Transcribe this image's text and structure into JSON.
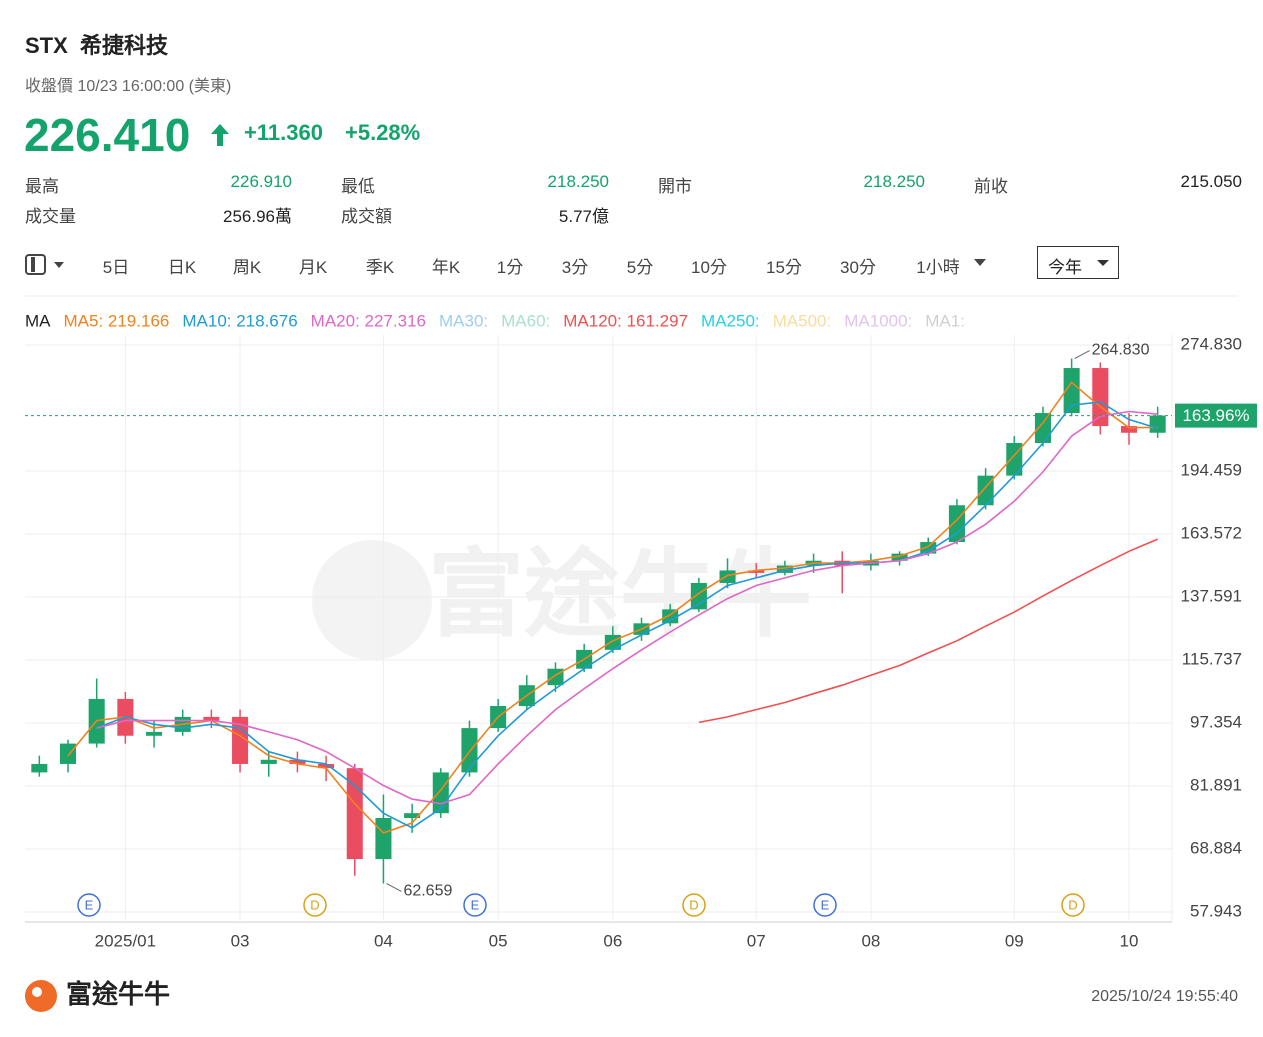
{
  "quote": {
    "symbol": "STX",
    "name": "希捷科技",
    "status": "收盤價 10/23 16:00:00 (美東)",
    "price": "226.410",
    "change": "+11.360",
    "change_pct": "+5.28%",
    "stats": [
      [
        "最高",
        "226.910"
      ],
      [
        "最低",
        "218.250"
      ],
      [
        "開市",
        "218.250"
      ],
      [
        "前收",
        "215.050"
      ],
      [
        "成交量",
        "256.96萬"
      ],
      [
        "成交額",
        "5.77億"
      ]
    ]
  },
  "tabs": [
    "5日",
    "日K",
    "周K",
    "月K",
    "季K",
    "年K",
    "1分",
    "3分",
    "5分",
    "10分",
    "15分",
    "30分",
    "1小時"
  ],
  "selected_range": "今年",
  "chart_data": {
    "type": "candlestick",
    "legend_title": "MA",
    "log_scale": true,
    "grid": true,
    "up_color": "#1ea46a",
    "down_color": "#ea4d60",
    "categories": [
      null,
      null,
      null,
      "2025/01",
      null,
      null,
      null,
      "03",
      null,
      null,
      null,
      null,
      "04",
      null,
      null,
      null,
      "05",
      null,
      null,
      null,
      "06",
      null,
      null,
      null,
      null,
      "07",
      null,
      null,
      null,
      "08",
      null,
      null,
      null,
      null,
      "09",
      null,
      null,
      null,
      "10",
      null
    ],
    "open": [
      85,
      87,
      92,
      104,
      94,
      95,
      99,
      99,
      87,
      88,
      87,
      86,
      67,
      75,
      76,
      85,
      96,
      102,
      108,
      113,
      119,
      124,
      128,
      133,
      143,
      148,
      147,
      150,
      152,
      150,
      152,
      155,
      160,
      177,
      192,
      210,
      228,
      258,
      220,
      216
    ],
    "high": [
      89,
      93,
      110,
      106,
      98,
      101,
      101,
      101,
      90,
      90,
      89,
      87,
      80,
      78,
      86,
      98,
      104,
      111,
      115,
      121,
      127,
      130,
      135,
      145,
      153,
      151,
      152,
      155,
      156,
      155,
      156,
      162,
      180,
      196,
      214,
      232,
      264.83,
      262,
      228,
      232
    ],
    "low": [
      84,
      85,
      91,
      92,
      91,
      94,
      96,
      85,
      84,
      85,
      83,
      64,
      62.659,
      72,
      75,
      84,
      95,
      101,
      106,
      112,
      118,
      122,
      127,
      132,
      141,
      145,
      146,
      147,
      139,
      148,
      150,
      154,
      159,
      175,
      190,
      208,
      226,
      215,
      209,
      213
    ],
    "close": [
      87,
      92,
      104,
      94,
      95,
      99,
      98,
      87,
      88,
      87,
      86,
      67,
      75,
      76,
      85,
      96,
      102,
      108,
      113,
      119,
      124,
      128,
      133,
      143,
      148,
      147,
      150,
      152,
      150,
      152,
      155,
      160,
      177,
      192,
      210,
      228,
      258,
      220,
      216,
      226.41
    ],
    "series": [
      {
        "name": "MA5",
        "legend": "MA5: 219.166",
        "color": "#f0821e",
        "values": [
          null,
          89,
          98,
          99,
          96,
          97,
          98,
          94,
          89,
          87,
          86,
          78,
          72,
          74,
          81,
          90,
          99,
          105,
          111,
          116,
          122,
          126,
          131,
          139,
          146,
          148,
          149,
          151,
          151,
          152,
          154,
          158,
          170,
          186,
          203,
          222,
          248,
          232,
          219,
          219.166
        ]
      },
      {
        "name": "MA10",
        "legend": "MA10: 218.676",
        "color": "#1e9bd7",
        "values": [
          null,
          null,
          96,
          99,
          97,
          96,
          97,
          96,
          90,
          88,
          87,
          82,
          76,
          73,
          77,
          86,
          94,
          101,
          107,
          113,
          119,
          124,
          129,
          135,
          142,
          145,
          148,
          150,
          151,
          151,
          152,
          156,
          164,
          177,
          192,
          210,
          233,
          235,
          224,
          218.676
        ]
      },
      {
        "name": "MA20",
        "legend": "MA20: 227.316",
        "color": "#e066c8",
        "values": [
          null,
          null,
          96,
          98,
          98,
          98,
          98,
          97,
          95,
          93,
          90,
          86,
          82,
          79,
          78,
          80,
          87,
          94,
          101,
          107,
          113,
          119,
          125,
          131,
          137,
          142,
          145,
          148,
          150,
          151,
          152,
          155,
          160,
          168,
          179,
          194,
          214,
          226,
          229,
          227.316
        ]
      },
      {
        "name": "MA120",
        "legend": "MA120: 161.297",
        "color": "#f05050",
        "values": [
          null,
          null,
          null,
          null,
          null,
          null,
          null,
          null,
          null,
          null,
          null,
          null,
          null,
          null,
          null,
          null,
          null,
          null,
          null,
          null,
          null,
          null,
          null,
          97.5,
          99,
          101,
          103,
          105.5,
          108,
          111,
          114,
          118,
          122,
          127,
          132,
          138,
          144,
          150,
          156,
          161.297
        ]
      }
    ],
    "inactive_legend": [
      {
        "label": "MA30:",
        "color": "#9ccfee"
      },
      {
        "label": "MA60:",
        "color": "#a8e0d0"
      },
      {
        "label": "MA250:",
        "color": "#22d3e0"
      },
      {
        "label": "MA500:",
        "color": "#f8dca0"
      },
      {
        "label": "MA1000:",
        "color": "#e0c4ee"
      },
      {
        "label": "MA1:",
        "color": "#d0d0d0"
      }
    ],
    "ylim": [
      56.68,
      282.5
    ],
    "yticks": [
      57.943,
      68.884,
      81.891,
      97.354,
      115.737,
      137.591,
      163.572,
      194.459,
      {
        "value": 274.83,
        "label": "274.830"
      }
    ],
    "current_marker": {
      "value": 226.41,
      "label": "163.96%",
      "color": "#1ea46a"
    },
    "annotations": [
      {
        "value": 264.83,
        "label": "264.830"
      },
      {
        "value": 62.659,
        "label": "62.659"
      }
    ],
    "events": [
      "E",
      "D",
      "E",
      "D",
      "E",
      "D"
    ],
    "watermark": "富途牛牛"
  },
  "footer": {
    "brand": "富途牛牛",
    "timestamp": "2025/10/24 19:55:40"
  }
}
